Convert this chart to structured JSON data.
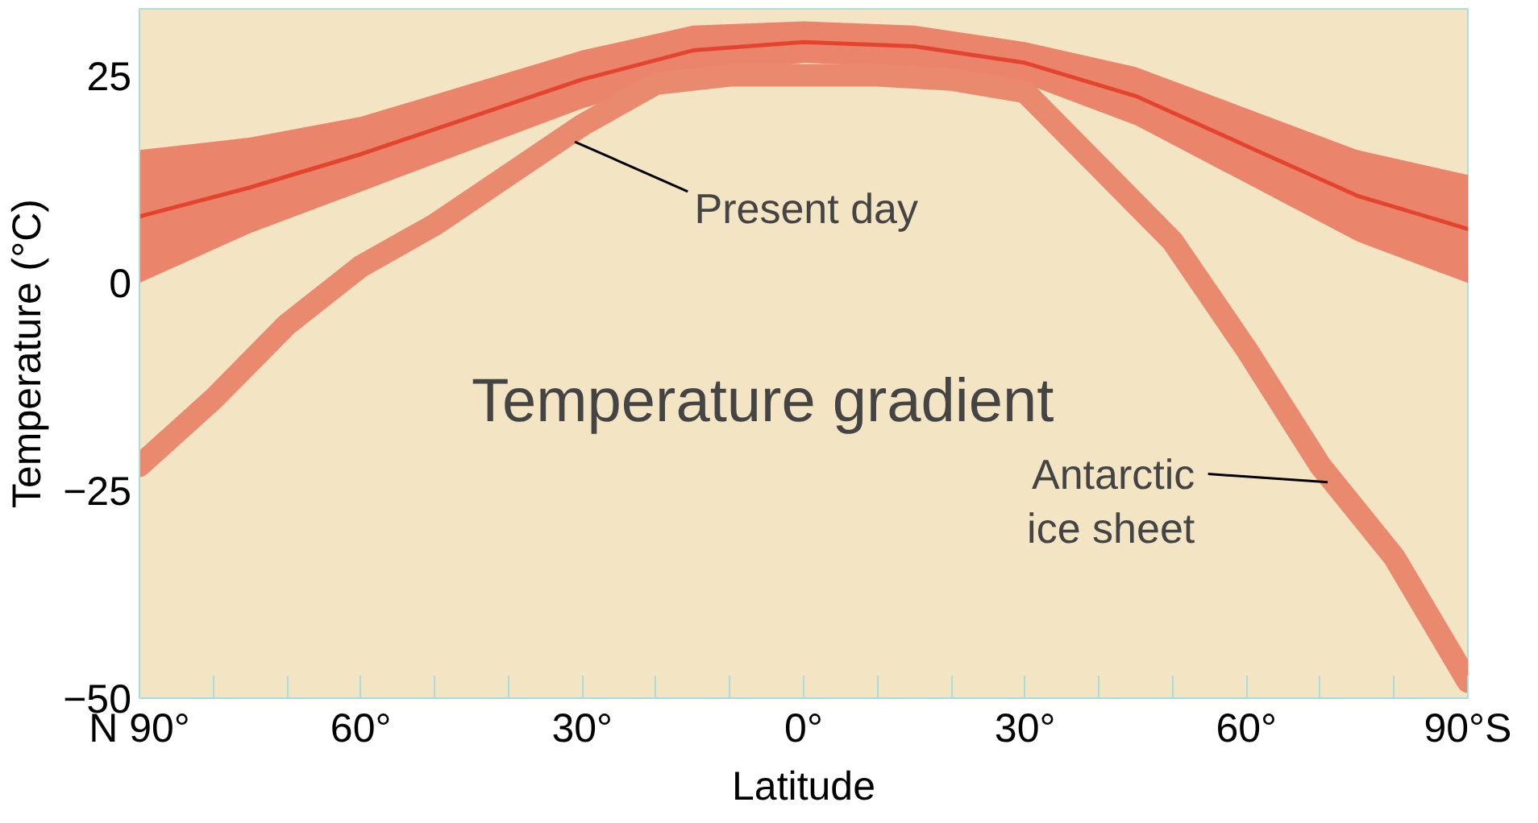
{
  "chart_data": {
    "type": "line",
    "xlabel": "Latitude",
    "ylabel": "Temperature (°C)",
    "annotations": [
      "Temperature gradient",
      {
        "text": "Present day",
        "x": -31,
        "y": 17
      },
      {
        "text": "Antarctic ice sheet",
        "x": 71,
        "y": -24
      }
    ],
    "xlim": [
      -90,
      90
    ],
    "ylim": [
      -50,
      33
    ],
    "xticks": [
      {
        "value": -90,
        "label": "N 90°"
      },
      {
        "value": -80,
        "label": null
      },
      {
        "value": -70,
        "label": null
      },
      {
        "value": -60,
        "label": "60°"
      },
      {
        "value": -50,
        "label": null
      },
      {
        "value": -40,
        "label": null
      },
      {
        "value": -30,
        "label": "30°"
      },
      {
        "value": -20,
        "label": null
      },
      {
        "value": -10,
        "label": null
      },
      {
        "value": 0,
        "label": "0°"
      },
      {
        "value": 10,
        "label": null
      },
      {
        "value": 20,
        "label": null
      },
      {
        "value": 30,
        "label": "30°"
      },
      {
        "value": 40,
        "label": null
      },
      {
        "value": 50,
        "label": null
      },
      {
        "value": 60,
        "label": "60°"
      },
      {
        "value": 70,
        "label": null
      },
      {
        "value": 80,
        "label": null
      },
      {
        "value": 90,
        "label": "90°S"
      }
    ],
    "yticks": [
      -50,
      -25,
      0,
      25
    ],
    "grid": false,
    "series": [
      {
        "color": "#e4442e",
        "x": [
          -90,
          -75,
          -60,
          -45,
          -30,
          -15,
          0,
          15,
          30,
          45,
          60,
          75,
          90
        ],
        "values": [
          8,
          11.5,
          15.5,
          20,
          24.5,
          28,
          29,
          28.5,
          26.5,
          22.5,
          16.5,
          10.5,
          6.5
        ],
        "lower": [
          0,
          6,
          11,
          16,
          21,
          25,
          26.5,
          26,
          24,
          19,
          12,
          5,
          0
        ],
        "upper": [
          16,
          17.5,
          20,
          24,
          28,
          31,
          31.5,
          31,
          29,
          26,
          21,
          16,
          13
        ]
      },
      {
        "color": "#e98a6e",
        "x": [
          -90,
          -80,
          -70,
          -60,
          -50,
          -40,
          -30,
          -20,
          -10,
          0,
          10,
          20,
          30,
          40,
          50,
          60,
          70,
          80,
          90
        ],
        "values": [
          -22,
          -14,
          -5,
          2,
          7,
          13,
          19,
          24,
          25,
          25,
          25,
          24.5,
          23,
          14,
          5,
          -8,
          -22,
          -33,
          -48
        ]
      }
    ]
  }
}
